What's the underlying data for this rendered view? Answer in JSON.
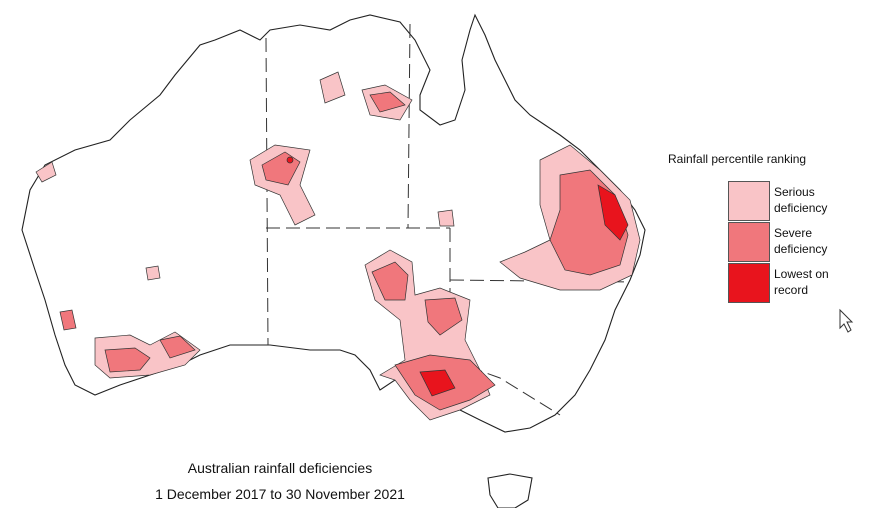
{
  "title": {
    "line1": "Australian rainfall deficiencies",
    "line2": "1 December 2017 to 30 November 2021"
  },
  "legend": {
    "title": "Rainfall percentile ranking",
    "items": [
      {
        "label": "Serious deficiency",
        "color": "#f9c4c7"
      },
      {
        "label": "Severe deficiency",
        "color": "#f0777c"
      },
      {
        "label": "Lowest on record",
        "color": "#e8141d"
      }
    ]
  }
}
